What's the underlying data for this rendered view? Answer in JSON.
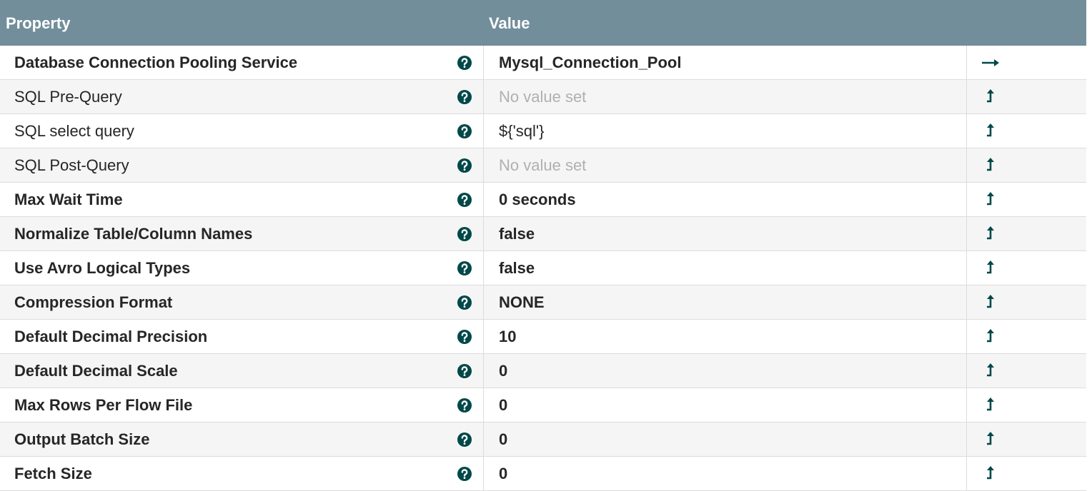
{
  "header": {
    "property": "Property",
    "value": "Value"
  },
  "rows": [
    {
      "property": "Database Connection Pooling Service",
      "value": "Mysql_Connection_Pool",
      "bold": true,
      "placeholder": false,
      "link": true
    },
    {
      "property": "SQL Pre-Query",
      "value": "No value set",
      "bold": false,
      "placeholder": true,
      "link": false
    },
    {
      "property": "SQL select query",
      "value": "${'sql'}",
      "bold": false,
      "placeholder": false,
      "link": false
    },
    {
      "property": "SQL Post-Query",
      "value": "No value set",
      "bold": false,
      "placeholder": true,
      "link": false
    },
    {
      "property": "Max Wait Time",
      "value": "0 seconds",
      "bold": true,
      "placeholder": false,
      "link": false
    },
    {
      "property": "Normalize Table/Column Names",
      "value": "false",
      "bold": true,
      "placeholder": false,
      "link": false
    },
    {
      "property": "Use Avro Logical Types",
      "value": "false",
      "bold": true,
      "placeholder": false,
      "link": false
    },
    {
      "property": "Compression Format",
      "value": "NONE",
      "bold": true,
      "placeholder": false,
      "link": false
    },
    {
      "property": "Default Decimal Precision",
      "value": "10",
      "bold": true,
      "placeholder": false,
      "link": false
    },
    {
      "property": "Default Decimal Scale",
      "value": "0",
      "bold": true,
      "placeholder": false,
      "link": false
    },
    {
      "property": "Max Rows Per Flow File",
      "value": "0",
      "bold": true,
      "placeholder": false,
      "link": false
    },
    {
      "property": "Output Batch Size",
      "value": "0",
      "bold": true,
      "placeholder": false,
      "link": false
    },
    {
      "property": "Fetch Size",
      "value": "0",
      "bold": true,
      "placeholder": false,
      "link": false
    }
  ]
}
